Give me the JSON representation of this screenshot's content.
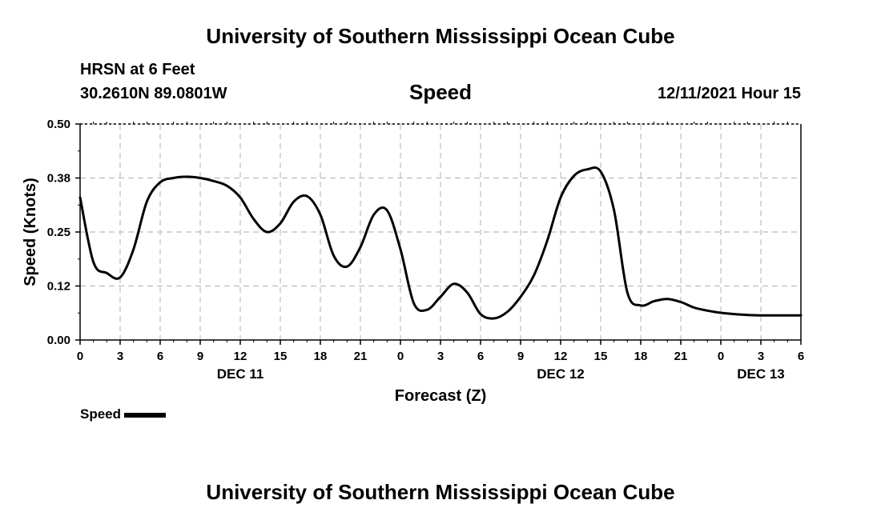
{
  "header": {
    "title": "University of Southern Mississippi Ocean Cube",
    "station": "HRSN at 6 Feet",
    "location": "30.2610N  89.0801W",
    "chart_title": "Speed",
    "datetime": "12/11/2021 Hour 15",
    "footer_title": "University of Southern Mississippi Ocean Cube"
  },
  "chart_data": {
    "type": "line",
    "title": "Speed",
    "xlabel": "Forecast (Z)",
    "ylabel": "Speed (Knots)",
    "ylim": [
      0,
      0.5
    ],
    "xlim": [
      0,
      54
    ],
    "y_ticks": [
      "0.00",
      "0.12",
      "0.25",
      "0.38",
      "0.50"
    ],
    "x_ticks": [
      "0",
      "3",
      "6",
      "9",
      "12",
      "15",
      "18",
      "21",
      "0",
      "3",
      "6",
      "9",
      "12",
      "15",
      "18",
      "21",
      "0",
      "3",
      "6"
    ],
    "date_labels": [
      {
        "label": "DEC 11",
        "x": 12
      },
      {
        "label": "DEC 12",
        "x": 36
      },
      {
        "label": "DEC 13",
        "x": 51
      }
    ],
    "grid": true,
    "legend": "bottom-left",
    "series": [
      {
        "name": "Speed",
        "color": "#000000",
        "x": [
          0,
          1,
          2,
          3,
          4,
          5,
          6,
          7,
          8,
          9,
          10,
          11,
          12,
          13,
          14,
          15,
          16,
          17,
          18,
          19,
          20,
          21,
          22,
          23,
          24,
          25,
          26,
          27,
          28,
          29,
          30,
          31,
          32,
          33,
          34,
          35,
          36,
          37,
          38,
          39,
          40,
          41,
          42,
          43,
          44,
          45,
          46,
          47,
          48,
          49,
          50,
          51,
          52,
          53,
          54
        ],
        "values": [
          0.33,
          0.18,
          0.155,
          0.145,
          0.21,
          0.32,
          0.365,
          0.375,
          0.378,
          0.375,
          0.368,
          0.357,
          0.33,
          0.28,
          0.25,
          0.27,
          0.32,
          0.333,
          0.29,
          0.195,
          0.17,
          0.215,
          0.29,
          0.3,
          0.21,
          0.085,
          0.07,
          0.1,
          0.13,
          0.11,
          0.06,
          0.05,
          0.065,
          0.1,
          0.15,
          0.23,
          0.33,
          0.38,
          0.395,
          0.39,
          0.3,
          0.11,
          0.08,
          0.09,
          0.095,
          0.088,
          0.075,
          0.068,
          0.063,
          0.06,
          0.058,
          0.057,
          0.057,
          0.057,
          0.057
        ]
      }
    ]
  }
}
